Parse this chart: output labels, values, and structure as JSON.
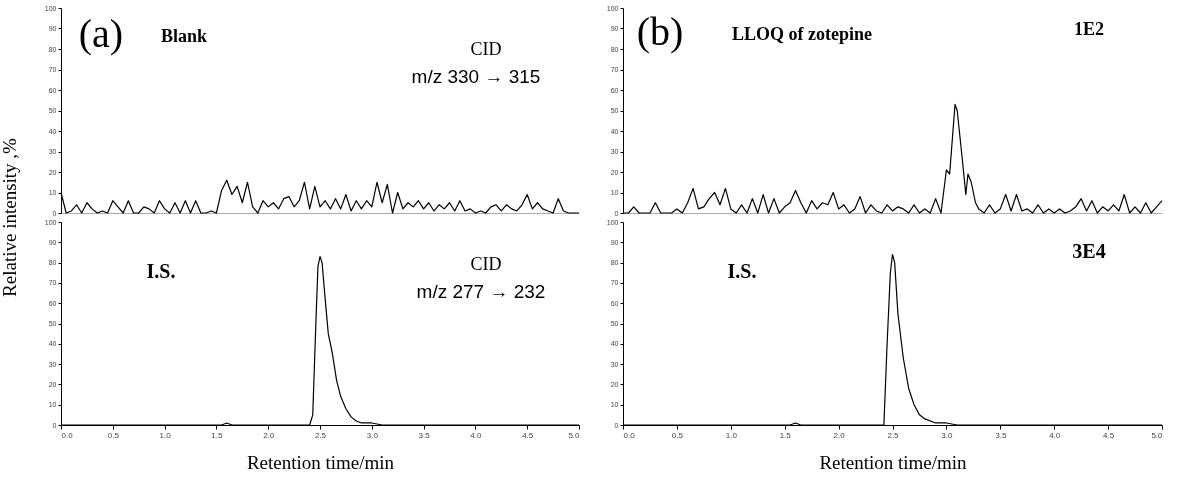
{
  "chart_data": [
    {
      "type": "line",
      "color": "#000000",
      "xlim": [
        0,
        5
      ],
      "ylim": [
        0,
        100
      ],
      "tick_labels": "y",
      "ylabel": "Relative intensity ,%",
      "yticks": [
        0,
        10,
        20,
        30,
        40,
        50,
        60,
        70,
        80,
        90,
        100
      ],
      "annotations": [
        "(a)",
        "Blank",
        "CID",
        "m/z 330 → 315"
      ],
      "x": [
        0,
        0.05,
        0.1,
        0.15,
        0.2,
        0.25,
        0.3,
        0.35,
        0.4,
        0.45,
        0.5,
        0.55,
        0.6,
        0.65,
        0.7,
        0.75,
        0.8,
        0.85,
        0.9,
        0.95,
        1.0,
        1.05,
        1.1,
        1.15,
        1.2,
        1.25,
        1.3,
        1.35,
        1.4,
        1.45,
        1.5,
        1.55,
        1.6,
        1.65,
        1.7,
        1.75,
        1.8,
        1.85,
        1.9,
        1.95,
        2.0,
        2.05,
        2.1,
        2.15,
        2.2,
        2.25,
        2.3,
        2.35,
        2.4,
        2.45,
        2.5,
        2.55,
        2.6,
        2.65,
        2.7,
        2.75,
        2.8,
        2.85,
        2.9,
        2.95,
        3.0,
        3.05,
        3.1,
        3.15,
        3.2,
        3.25,
        3.3,
        3.35,
        3.4,
        3.45,
        3.5,
        3.55,
        3.6,
        3.65,
        3.7,
        3.75,
        3.8,
        3.85,
        3.9,
        3.95,
        4.0,
        4.05,
        4.1,
        4.15,
        4.2,
        4.25,
        4.3,
        4.35,
        4.4,
        4.45,
        4.5,
        4.55,
        4.6,
        4.65,
        4.7,
        4.75,
        4.8,
        4.85,
        4.9,
        4.95,
        5.0
      ],
      "values": [
        10,
        0,
        1,
        4,
        0,
        5,
        2,
        0,
        1,
        0,
        6,
        3,
        0,
        6,
        0,
        0,
        3,
        2,
        0,
        6,
        2,
        0,
        5,
        0,
        6,
        0,
        6,
        0,
        0,
        1,
        0,
        11,
        16,
        9,
        13,
        5,
        15,
        3,
        0,
        6,
        3,
        5,
        2,
        7,
        8,
        3,
        6,
        15,
        2,
        13,
        3,
        6,
        2,
        7,
        2,
        9,
        1,
        6,
        2,
        6,
        3,
        15,
        5,
        14,
        0,
        10,
        2,
        5,
        3,
        6,
        2,
        5,
        1,
        4,
        2,
        5,
        1,
        6,
        1,
        2,
        0,
        1,
        0,
        3,
        4,
        1,
        4,
        2,
        1,
        4,
        9,
        2,
        5,
        2,
        1,
        0,
        7,
        1,
        0,
        0,
        0
      ]
    },
    {
      "type": "line",
      "color": "#000000",
      "xlim": [
        0,
        5
      ],
      "ylim": [
        0,
        100
      ],
      "xlabel": "Retention time/min",
      "xticks": [
        {
          "value": 0,
          "label": "0.0"
        },
        0.5,
        {
          "value": 1,
          "label": "1.0"
        },
        1.5,
        {
          "value": 2,
          "label": "2.0"
        },
        2.5,
        {
          "value": 3,
          "label": "3.0"
        },
        3.5,
        {
          "value": 4,
          "label": "4.0"
        },
        4.5,
        {
          "value": 5,
          "label": "5.0"
        }
      ],
      "yticks": [
        0,
        10,
        20,
        30,
        40,
        50,
        60,
        70,
        80,
        90,
        100
      ],
      "annotations": [
        "I.S.",
        "CID",
        "m/z 277 → 232"
      ],
      "x": [
        0,
        1.55,
        1.6,
        1.65,
        2.4,
        2.43,
        2.46,
        2.48,
        2.5,
        2.52,
        2.55,
        2.58,
        2.62,
        2.66,
        2.7,
        2.75,
        2.8,
        2.85,
        2.9,
        3.0,
        3.1,
        3.2,
        5.0
      ],
      "values": [
        0,
        0,
        1,
        0,
        0,
        5,
        50,
        78,
        83,
        80,
        62,
        45,
        35,
        22,
        14,
        8,
        4,
        2,
        1,
        1,
        0,
        0,
        0
      ]
    },
    {
      "type": "line",
      "color": "#000000",
      "xlim": [
        0,
        5
      ],
      "ylim": [
        0,
        100
      ],
      "tick_labels": "y",
      "yticks": [
        0,
        10,
        20,
        30,
        40,
        50,
        60,
        70,
        80,
        90,
        100
      ],
      "annotations": [
        "(b)",
        "LLOQ of zotepine",
        "1E2"
      ],
      "x": [
        0,
        0.05,
        0.1,
        0.15,
        0.2,
        0.25,
        0.3,
        0.35,
        0.4,
        0.45,
        0.5,
        0.55,
        0.6,
        0.65,
        0.7,
        0.75,
        0.8,
        0.85,
        0.9,
        0.95,
        1.0,
        1.05,
        1.1,
        1.15,
        1.2,
        1.25,
        1.3,
        1.35,
        1.4,
        1.45,
        1.5,
        1.55,
        1.6,
        1.65,
        1.7,
        1.75,
        1.8,
        1.85,
        1.9,
        1.95,
        2.0,
        2.05,
        2.1,
        2.15,
        2.2,
        2.25,
        2.3,
        2.35,
        2.4,
        2.45,
        2.5,
        2.55,
        2.6,
        2.65,
        2.7,
        2.75,
        2.8,
        2.85,
        2.9,
        2.95,
        3.0,
        3.03,
        3.08,
        3.1,
        3.15,
        3.18,
        3.2,
        3.23,
        3.27,
        3.3,
        3.35,
        3.4,
        3.45,
        3.5,
        3.55,
        3.6,
        3.65,
        3.7,
        3.75,
        3.8,
        3.85,
        3.9,
        3.95,
        4.0,
        4.05,
        4.1,
        4.15,
        4.2,
        4.25,
        4.3,
        4.35,
        4.4,
        4.45,
        4.5,
        4.55,
        4.6,
        4.65,
        4.7,
        4.75,
        4.8,
        4.85,
        4.9,
        4.95,
        5.0
      ],
      "values": [
        0,
        0,
        3,
        0,
        0,
        0,
        5,
        0,
        0,
        0,
        2,
        0,
        5,
        12,
        2,
        3,
        7,
        10,
        4,
        12,
        2,
        0,
        4,
        0,
        7,
        0,
        9,
        0,
        7,
        0,
        3,
        5,
        11,
        5,
        0,
        6,
        2,
        5,
        4,
        10,
        2,
        4,
        0,
        2,
        8,
        0,
        4,
        1,
        0,
        4,
        1,
        3,
        2,
        0,
        4,
        0,
        2,
        0,
        7,
        0,
        21,
        19,
        53,
        50,
        25,
        9,
        19,
        15,
        5,
        2,
        0,
        4,
        0,
        2,
        9,
        1,
        9,
        1,
        2,
        0,
        4,
        0,
        2,
        0,
        2,
        0,
        1,
        3,
        7,
        1,
        6,
        0,
        3,
        1,
        4,
        1,
        9,
        0,
        3,
        0,
        5,
        0,
        3,
        6
      ]
    },
    {
      "type": "line",
      "color": "#000000",
      "xlim": [
        0,
        5
      ],
      "ylim": [
        0,
        100
      ],
      "xlabel": "Retention time/min",
      "xticks": [
        {
          "value": 0,
          "label": "0.0"
        },
        0.5,
        {
          "value": 1,
          "label": "1.0"
        },
        1.5,
        {
          "value": 2,
          "label": "2.0"
        },
        2.5,
        {
          "value": 3,
          "label": "3.0"
        },
        3.5,
        {
          "value": 4,
          "label": "4.0"
        },
        4.5,
        {
          "value": 5,
          "label": "5.0"
        }
      ],
      "yticks": [
        0,
        10,
        20,
        30,
        40,
        50,
        60,
        70,
        80,
        90,
        100
      ],
      "annotations": [
        "I.S.",
        "3E4"
      ],
      "x": [
        0,
        1.55,
        1.6,
        1.65,
        2.42,
        2.45,
        2.48,
        2.5,
        2.52,
        2.55,
        2.6,
        2.65,
        2.7,
        2.75,
        2.8,
        2.9,
        3.0,
        3.1,
        5.0
      ],
      "values": [
        0,
        0,
        1,
        0,
        0,
        40,
        75,
        84,
        80,
        55,
        33,
        18,
        10,
        5,
        3,
        1,
        1,
        0,
        0
      ]
    }
  ]
}
